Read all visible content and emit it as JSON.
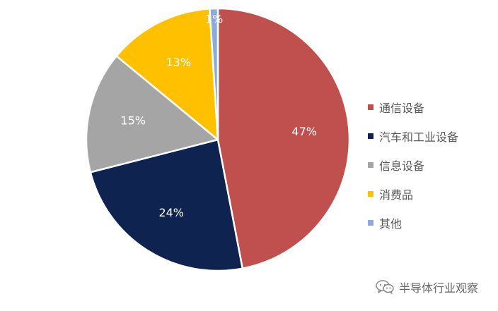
{
  "chart_data": {
    "type": "pie",
    "title": "",
    "start_angle_deg": 0,
    "direction": "clockwise",
    "slices": [
      {
        "label": "通信设备",
        "value": 47,
        "display": "47%",
        "color": "#c0504d"
      },
      {
        "label": "汽车和工业设备",
        "value": 24,
        "display": "24%",
        "color": "#0f2351"
      },
      {
        "label": "信息设备",
        "value": 15,
        "display": "15%",
        "color": "#a5a5a5"
      },
      {
        "label": "消费品",
        "value": 13,
        "display": "13%",
        "color": "#ffc000"
      },
      {
        "label": "其他",
        "value": 1,
        "display": "1%",
        "color": "#8eaadb"
      }
    ],
    "legend_position": "right",
    "data_label_color": "#ffffff"
  },
  "legend": {
    "items": [
      {
        "label": "通信设备",
        "color": "#c0504d"
      },
      {
        "label": "汽车和工业设备",
        "color": "#0f2351"
      },
      {
        "label": "信息设备",
        "color": "#a5a5a5"
      },
      {
        "label": "消费品",
        "color": "#ffc000"
      },
      {
        "label": "其他",
        "color": "#8eaadb"
      }
    ]
  },
  "watermark": {
    "text": "半导体行业观察",
    "icon": "wechat-icon"
  }
}
